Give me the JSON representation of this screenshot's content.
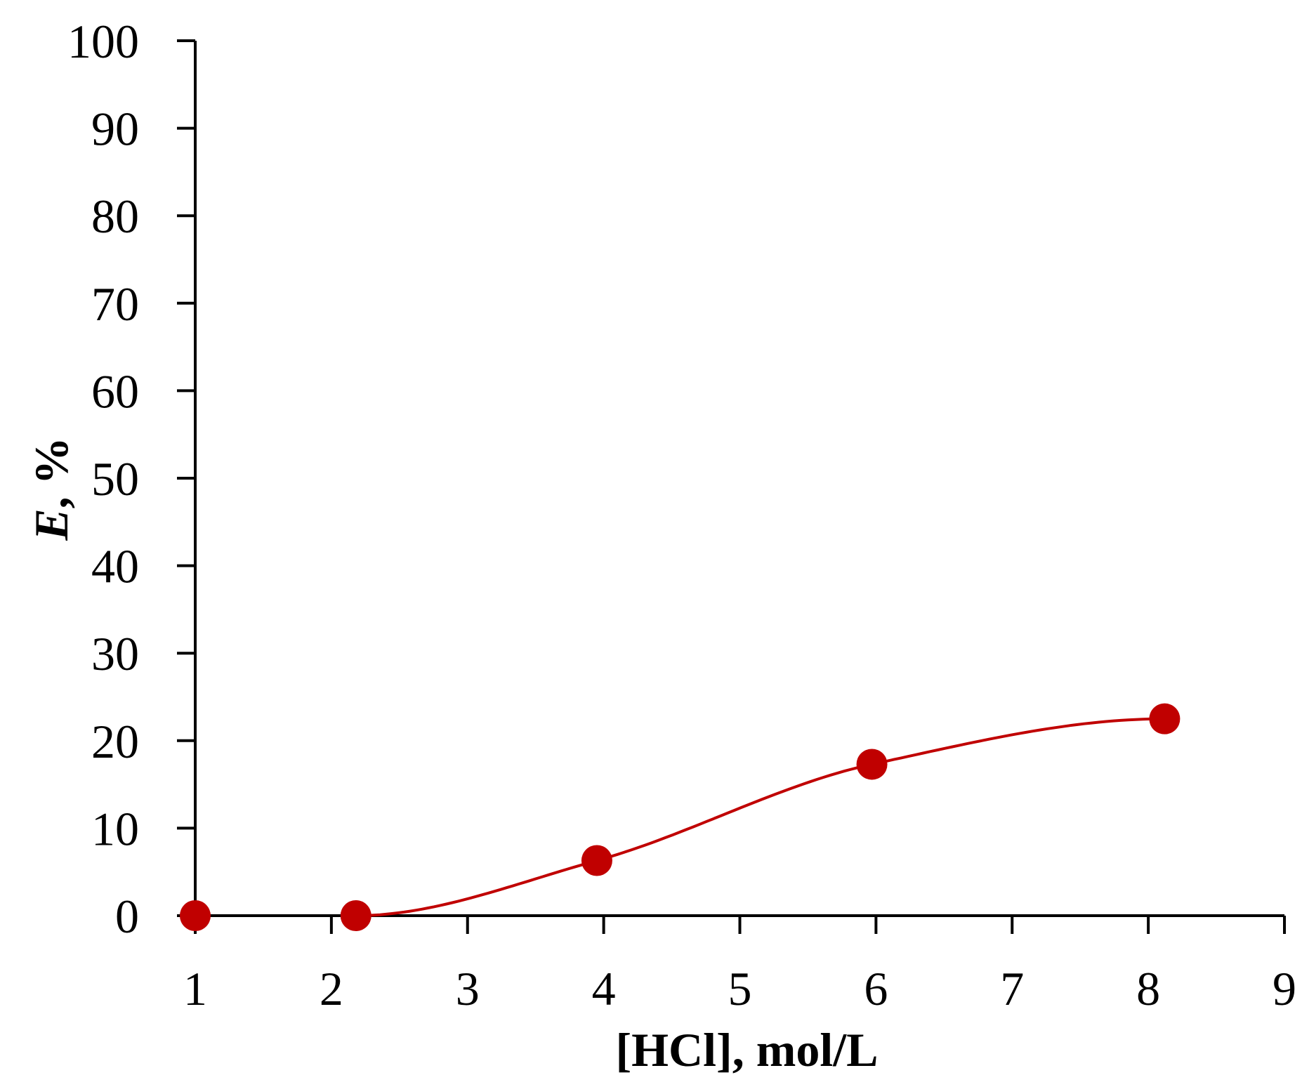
{
  "chart_data": {
    "type": "scatter",
    "title": "",
    "xlabel": "[HCl], mol/L",
    "ylabel": {
      "italic": "E",
      "rest": ", %"
    },
    "xlim": [
      1,
      9
    ],
    "ylim": [
      0,
      100
    ],
    "x_ticks": [
      "1",
      "2",
      "3",
      "4",
      "5",
      "6",
      "7",
      "8",
      "9"
    ],
    "y_ticks": [
      "0",
      "10",
      "20",
      "30",
      "40",
      "50",
      "60",
      "70",
      "80",
      "90",
      "100"
    ],
    "grid": false,
    "legend": "none",
    "series": [
      {
        "x": [
          1,
          2.18,
          3.95,
          5.97,
          8.12
        ],
        "y": [
          0,
          0,
          6.3,
          17.3,
          22.5
        ],
        "color": "#c00000",
        "marker": "circle",
        "trendline": "smooth"
      }
    ]
  }
}
